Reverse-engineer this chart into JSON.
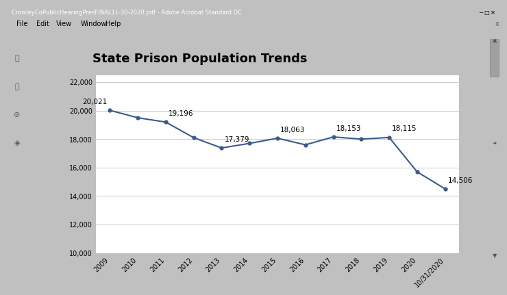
{
  "title": "State Prison Population Trends",
  "years": [
    "2009",
    "2010",
    "2011",
    "2012",
    "2013",
    "2014",
    "2015",
    "2016",
    "2017",
    "2018",
    "2019",
    "2020",
    "10/31/2020"
  ],
  "values": [
    20021,
    19500,
    19196,
    18100,
    17379,
    17700,
    18063,
    17600,
    18153,
    18000,
    18115,
    15700,
    14506
  ],
  "labeled_points": {
    "2009": 20021,
    "2011": 19196,
    "2013": 17379,
    "2015": 18063,
    "2017": 18153,
    "2019": 18115,
    "10/31/2020": 14506
  },
  "line_color": "#3A5A8C",
  "marker_color": "#3A5A8C",
  "grid_color": "#CCCCCC",
  "window_bg": "#C0C0C0",
  "titlebar_bg": "#4A4A8A",
  "titlebar_text": "CrowleyCoPublicHearingPresFINAL11-30-2020.pdf - Adobe Acrobat Standard DC",
  "menubar_bg": "#F0F0F0",
  "menu_items": [
    "File",
    "Edit",
    "View",
    "Window",
    "Help"
  ],
  "page_bg": "#FFFFFF",
  "left_panel_bg": "#E8E8E8",
  "plot_bg_color": "#FFFFFF",
  "title_fontsize": 13,
  "ylim": [
    10000,
    22500
  ],
  "yticks": [
    10000,
    12000,
    14000,
    16000,
    18000,
    20000,
    22000
  ],
  "title_color": "#000000",
  "label_fontsize": 7.5,
  "tick_fontsize": 7
}
